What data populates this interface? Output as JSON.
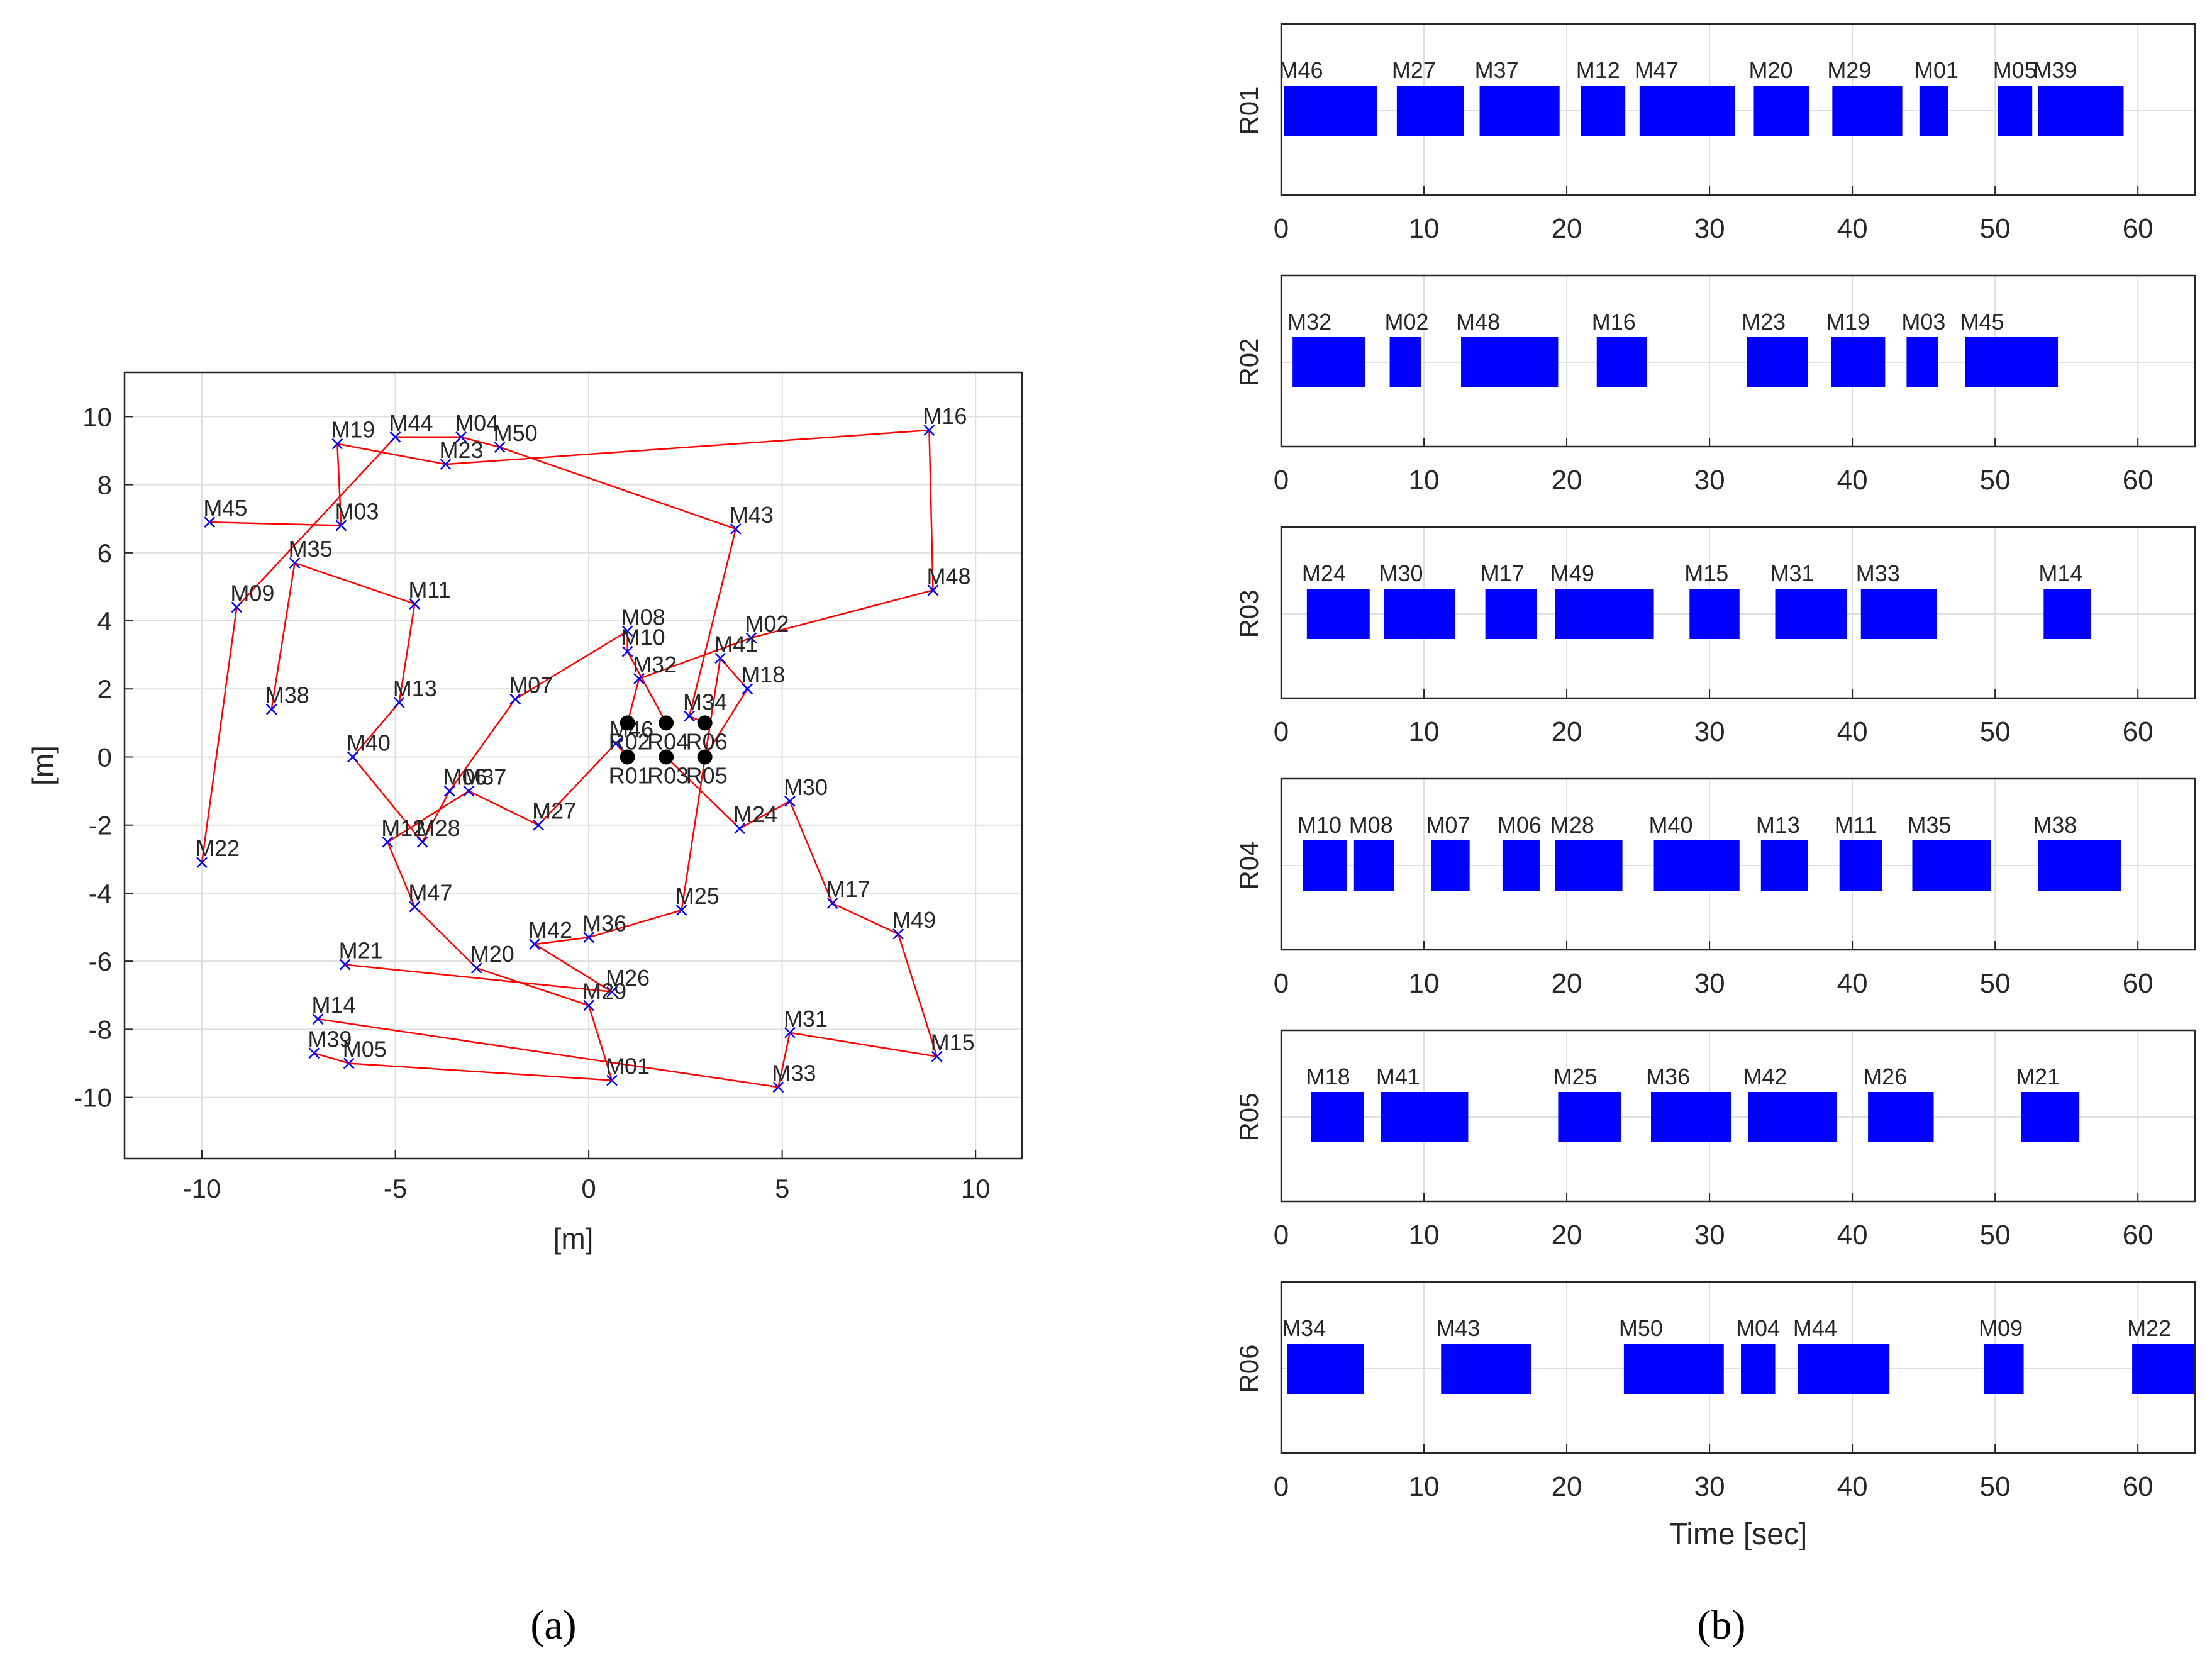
{
  "panel_labels": {
    "a": "(a)",
    "b": "(b)"
  },
  "chart_data": [
    {
      "type": "scatter",
      "title": "",
      "xlabel": "[m]",
      "ylabel": "[m]",
      "xlim": [
        -12,
        11.2
      ],
      "ylim": [
        -11.8,
        11.3
      ],
      "xticks": [
        -10,
        -5,
        0,
        5,
        10
      ],
      "xtick_labels": [
        "-10",
        "-5",
        "0",
        "5",
        "10"
      ],
      "yticks": [
        10,
        8,
        6,
        4,
        2,
        0,
        -2,
        -4,
        -6,
        -8,
        -10
      ],
      "ytick_labels": [
        "10",
        "8",
        "6",
        "4",
        "2",
        "0",
        "-2",
        "-4",
        "-6",
        "-8",
        "-10"
      ],
      "grid": true,
      "robots": [
        {
          "name": "R01",
          "x": 1,
          "y": 0
        },
        {
          "name": "R02",
          "x": 1,
          "y": 1
        },
        {
          "name": "R03",
          "x": 2,
          "y": 0
        },
        {
          "name": "R04",
          "x": 2,
          "y": 1
        },
        {
          "name": "R05",
          "x": 3,
          "y": 0
        },
        {
          "name": "R06",
          "x": 3,
          "y": 1
        }
      ],
      "markers": [
        {
          "name": "M01",
          "x": 0.6,
          "y": -9.5
        },
        {
          "name": "M02",
          "x": 4.2,
          "y": 3.5
        },
        {
          "name": "M03",
          "x": -6.4,
          "y": 6.8
        },
        {
          "name": "M04",
          "x": -3.3,
          "y": 9.4
        },
        {
          "name": "M05",
          "x": -6.2,
          "y": -9.0
        },
        {
          "name": "M06",
          "x": -3.6,
          "y": -1.0
        },
        {
          "name": "M07",
          "x": -1.9,
          "y": 1.7
        },
        {
          "name": "M08",
          "x": 1.0,
          "y": 3.7
        },
        {
          "name": "M09",
          "x": -9.1,
          "y": 4.4
        },
        {
          "name": "M10",
          "x": 1.0,
          "y": 3.1
        },
        {
          "name": "M11",
          "x": -4.5,
          "y": 4.5
        },
        {
          "name": "M12",
          "x": -5.2,
          "y": -2.5
        },
        {
          "name": "M13",
          "x": -4.9,
          "y": 1.6
        },
        {
          "name": "M14",
          "x": -7.0,
          "y": -7.7
        },
        {
          "name": "M15",
          "x": 9.0,
          "y": -8.8
        },
        {
          "name": "M16",
          "x": 8.8,
          "y": 9.6
        },
        {
          "name": "M17",
          "x": 6.3,
          "y": -4.3
        },
        {
          "name": "M18",
          "x": 4.1,
          "y": 2.0
        },
        {
          "name": "M19",
          "x": -6.5,
          "y": 9.2
        },
        {
          "name": "M20",
          "x": -2.9,
          "y": -6.2
        },
        {
          "name": "M21",
          "x": -6.3,
          "y": -6.1
        },
        {
          "name": "M22",
          "x": -10.0,
          "y": -3.1
        },
        {
          "name": "M23",
          "x": -3.7,
          "y": 8.6
        },
        {
          "name": "M24",
          "x": 3.9,
          "y": -2.1
        },
        {
          "name": "M25",
          "x": 2.4,
          "y": -4.5
        },
        {
          "name": "M26",
          "x": 0.6,
          "y": -6.9
        },
        {
          "name": "M27",
          "x": -1.3,
          "y": -2.0
        },
        {
          "name": "M28",
          "x": -4.3,
          "y": -2.5
        },
        {
          "name": "M29",
          "x": 0.0,
          "y": -7.3
        },
        {
          "name": "M30",
          "x": 5.2,
          "y": -1.3
        },
        {
          "name": "M31",
          "x": 5.2,
          "y": -8.1
        },
        {
          "name": "M32",
          "x": 1.3,
          "y": 2.3
        },
        {
          "name": "M33",
          "x": 4.9,
          "y": -9.7
        },
        {
          "name": "M34",
          "x": 2.6,
          "y": 1.2
        },
        {
          "name": "M35",
          "x": -7.6,
          "y": 5.7
        },
        {
          "name": "M36",
          "x": 0.0,
          "y": -5.3
        },
        {
          "name": "M37",
          "x": -3.1,
          "y": -1.0
        },
        {
          "name": "M38",
          "x": -8.2,
          "y": 1.4
        },
        {
          "name": "M39",
          "x": -7.1,
          "y": -8.7
        },
        {
          "name": "M40",
          "x": -6.1,
          "y": 0.0
        },
        {
          "name": "M41",
          "x": 3.4,
          "y": 2.9
        },
        {
          "name": "M42",
          "x": -1.4,
          "y": -5.5
        },
        {
          "name": "M43",
          "x": 3.8,
          "y": 6.7
        },
        {
          "name": "M44",
          "x": -5.0,
          "y": 9.4
        },
        {
          "name": "M45",
          "x": -9.8,
          "y": 6.9
        },
        {
          "name": "M46",
          "x": 0.7,
          "y": 0.4
        },
        {
          "name": "M47",
          "x": -4.5,
          "y": -4.4
        },
        {
          "name": "M48",
          "x": 8.9,
          "y": 4.9
        },
        {
          "name": "M49",
          "x": 8.0,
          "y": -5.2
        },
        {
          "name": "M50",
          "x": -2.3,
          "y": 9.1
        }
      ],
      "routes": [
        {
          "robot": "R01",
          "path": [
            "R01",
            "M46",
            "M27",
            "M37",
            "M12",
            "M47",
            "M20",
            "M29",
            "M01",
            "M05",
            "M39"
          ]
        },
        {
          "robot": "R02",
          "path": [
            "R02",
            "M32",
            "M02",
            "M48",
            "M16",
            "M23",
            "M19",
            "M03",
            "M45"
          ]
        },
        {
          "robot": "R03",
          "path": [
            "R03",
            "M24",
            "M30",
            "M17",
            "M49",
            "M15",
            "M31",
            "M33",
            "M14"
          ]
        },
        {
          "robot": "R04",
          "path": [
            "R04",
            "M10",
            "M08",
            "M07",
            "M06",
            "M28",
            "M40",
            "M13",
            "M11",
            "M35",
            "M38"
          ]
        },
        {
          "robot": "R05",
          "path": [
            "R05",
            "M18",
            "M41",
            "M25",
            "M36",
            "M42",
            "M26",
            "M21"
          ]
        },
        {
          "robot": "R06",
          "path": [
            "R06",
            "M34",
            "M43",
            "M50",
            "M04",
            "M44",
            "M09",
            "M22"
          ]
        }
      ]
    },
    {
      "type": "gantt",
      "xlabel": "Time [sec]",
      "xlim": [
        0,
        64
      ],
      "xticks": [
        0,
        10,
        20,
        30,
        40,
        50,
        60
      ],
      "xtick_labels": [
        "0",
        "10",
        "20",
        "30",
        "40",
        "50",
        "60"
      ],
      "grid": true,
      "rows": [
        {
          "robot": "R01",
          "tasks": [
            {
              "name": "M46",
              "start": 0.2,
              "end": 6.7
            },
            {
              "name": "M27",
              "start": 8.1,
              "end": 12.8
            },
            {
              "name": "M37",
              "start": 13.9,
              "end": 19.5
            },
            {
              "name": "M12",
              "start": 21.0,
              "end": 24.1
            },
            {
              "name": "M47",
              "start": 25.1,
              "end": 31.8
            },
            {
              "name": "M20",
              "start": 33.1,
              "end": 37.0
            },
            {
              "name": "M29",
              "start": 38.6,
              "end": 43.5
            },
            {
              "name": "M01",
              "start": 44.7,
              "end": 46.7
            },
            {
              "name": "M05",
              "start": 50.2,
              "end": 52.6
            },
            {
              "name": "M39",
              "start": 53.0,
              "end": 59.0
            }
          ]
        },
        {
          "robot": "R02",
          "tasks": [
            {
              "name": "M32",
              "start": 0.8,
              "end": 5.9
            },
            {
              "name": "M02",
              "start": 7.6,
              "end": 9.8
            },
            {
              "name": "M48",
              "start": 12.6,
              "end": 19.4
            },
            {
              "name": "M16",
              "start": 22.1,
              "end": 25.6
            },
            {
              "name": "M23",
              "start": 32.6,
              "end": 36.9
            },
            {
              "name": "M19",
              "start": 38.5,
              "end": 42.3
            },
            {
              "name": "M03",
              "start": 43.8,
              "end": 46.0
            },
            {
              "name": "M45",
              "start": 47.9,
              "end": 54.4
            }
          ]
        },
        {
          "robot": "R03",
          "tasks": [
            {
              "name": "M24",
              "start": 1.8,
              "end": 6.2
            },
            {
              "name": "M30",
              "start": 7.2,
              "end": 12.2
            },
            {
              "name": "M17",
              "start": 14.3,
              "end": 17.9
            },
            {
              "name": "M49",
              "start": 19.2,
              "end": 26.1
            },
            {
              "name": "M15",
              "start": 28.6,
              "end": 32.1
            },
            {
              "name": "M31",
              "start": 34.6,
              "end": 39.6
            },
            {
              "name": "M33",
              "start": 40.6,
              "end": 45.9
            },
            {
              "name": "M14",
              "start": 53.4,
              "end": 56.7
            }
          ]
        },
        {
          "robot": "R04",
          "tasks": [
            {
              "name": "M10",
              "start": 1.5,
              "end": 4.6
            },
            {
              "name": "M08",
              "start": 5.1,
              "end": 7.9
            },
            {
              "name": "M07",
              "start": 10.5,
              "end": 13.2
            },
            {
              "name": "M06",
              "start": 15.5,
              "end": 18.1
            },
            {
              "name": "M28",
              "start": 19.2,
              "end": 23.9
            },
            {
              "name": "M40",
              "start": 26.1,
              "end": 32.1
            },
            {
              "name": "M13",
              "start": 33.6,
              "end": 36.9
            },
            {
              "name": "M11",
              "start": 39.1,
              "end": 42.1
            },
            {
              "name": "M35",
              "start": 44.2,
              "end": 49.7
            },
            {
              "name": "M38",
              "start": 53.0,
              "end": 58.8
            }
          ]
        },
        {
          "robot": "R05",
          "tasks": [
            {
              "name": "M18",
              "start": 2.1,
              "end": 5.8
            },
            {
              "name": "M41",
              "start": 7.0,
              "end": 13.1
            },
            {
              "name": "M25",
              "start": 19.4,
              "end": 23.8
            },
            {
              "name": "M36",
              "start": 25.9,
              "end": 31.5
            },
            {
              "name": "M42",
              "start": 32.7,
              "end": 38.9
            },
            {
              "name": "M26",
              "start": 41.1,
              "end": 45.7
            },
            {
              "name": "M21",
              "start": 51.8,
              "end": 55.9
            }
          ]
        },
        {
          "robot": "R06",
          "tasks": [
            {
              "name": "M34",
              "start": 0.4,
              "end": 5.8
            },
            {
              "name": "M43",
              "start": 11.2,
              "end": 17.5
            },
            {
              "name": "M50",
              "start": 24.0,
              "end": 31.0
            },
            {
              "name": "M04",
              "start": 32.2,
              "end": 34.6
            },
            {
              "name": "M44",
              "start": 36.2,
              "end": 42.6
            },
            {
              "name": "M09",
              "start": 49.2,
              "end": 52.0
            },
            {
              "name": "M22",
              "start": 59.6,
              "end": 64.0
            }
          ]
        }
      ]
    }
  ]
}
